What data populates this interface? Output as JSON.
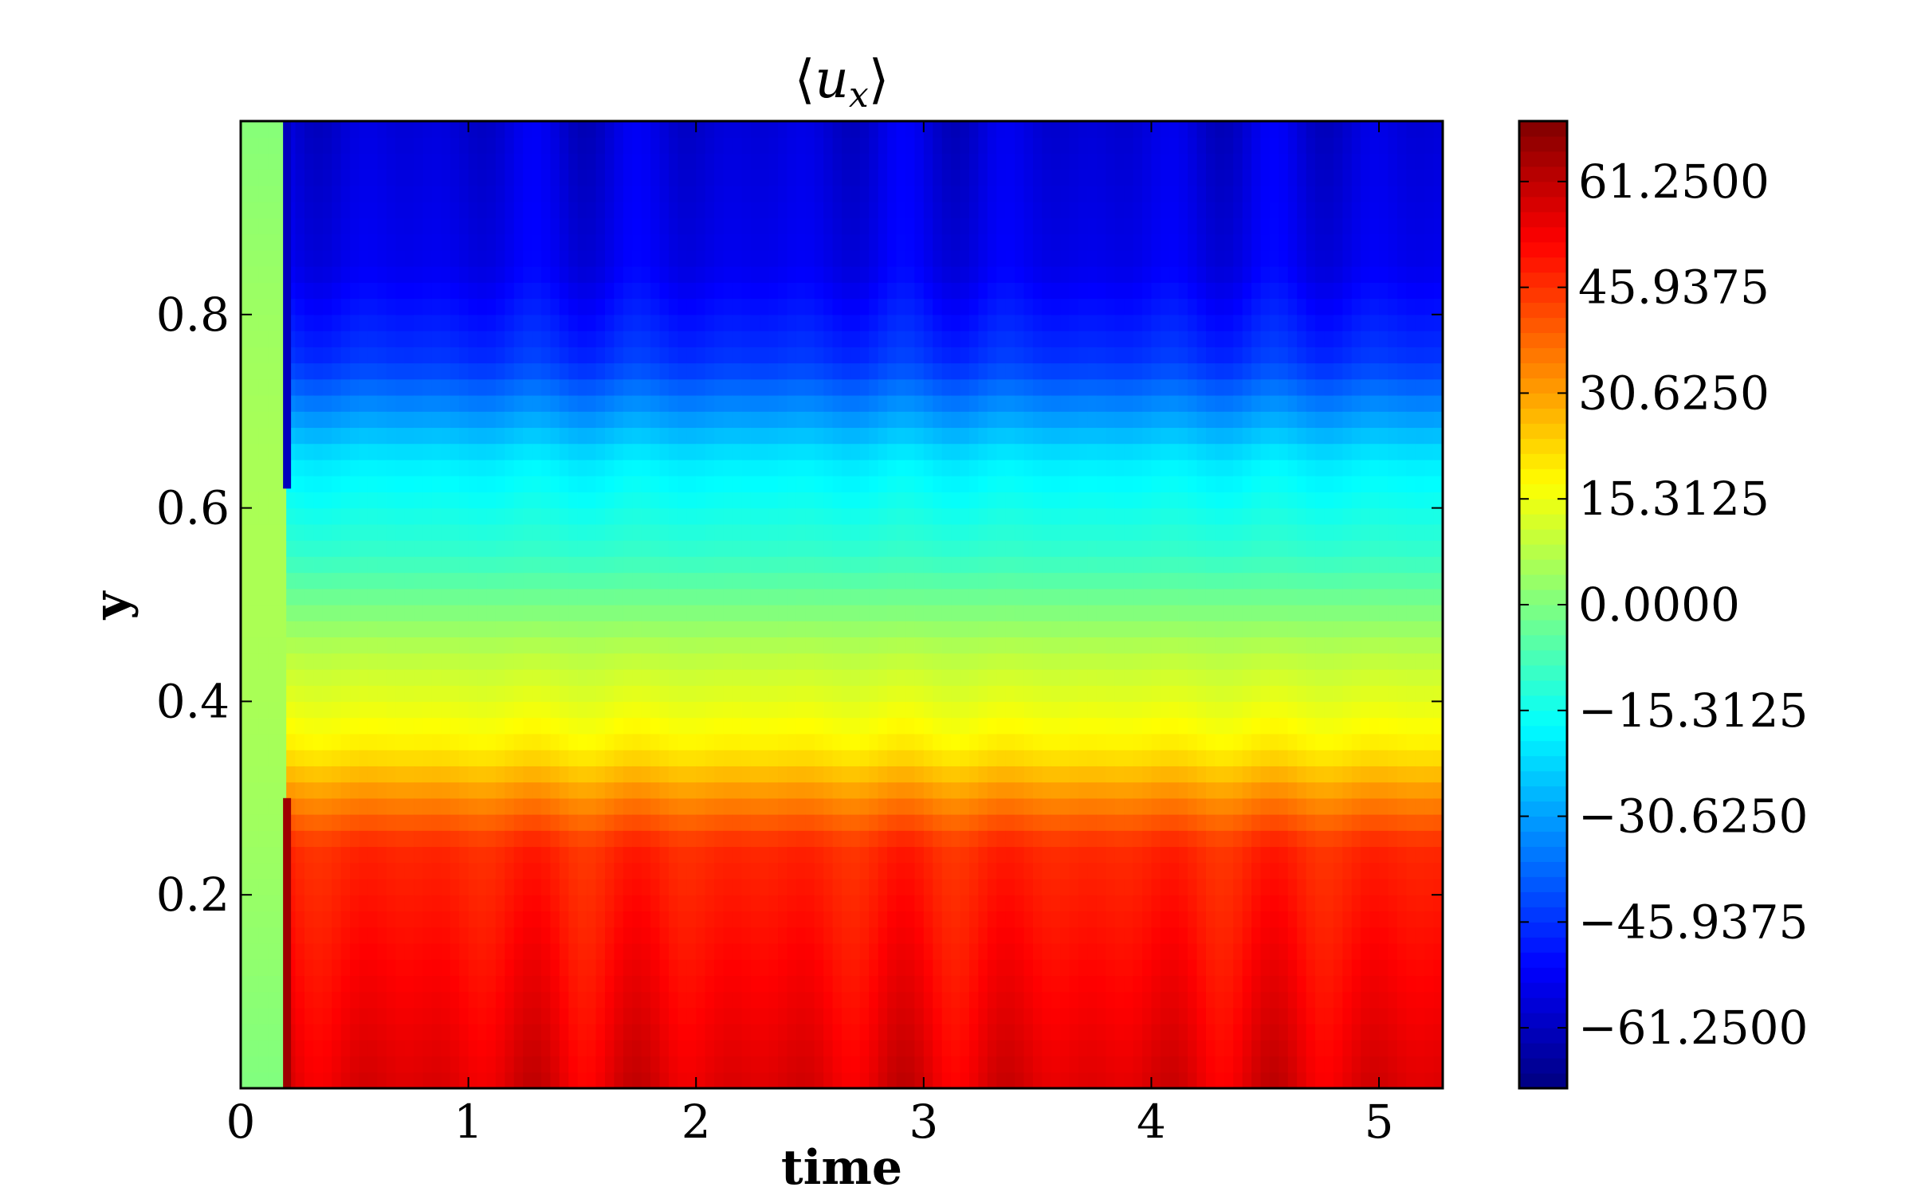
{
  "chart_data": {
    "type": "heatmap",
    "title": "⟨u_x⟩",
    "title_parts": {
      "open": "⟨",
      "var": "u",
      "sub": "x",
      "close": "⟩"
    },
    "xlabel": "time",
    "ylabel": "y",
    "xlim": [
      0,
      5.28
    ],
    "ylim": [
      0,
      1.0
    ],
    "x_ticks": [
      0,
      1,
      2,
      3,
      4,
      5
    ],
    "x_tick_labels": [
      "0",
      "1",
      "2",
      "3",
      "4",
      "5"
    ],
    "y_ticks": [
      0.2,
      0.4,
      0.6,
      0.8
    ],
    "y_tick_labels": [
      "0.2",
      "0.4",
      "0.6",
      "0.8"
    ],
    "colorbar": {
      "vmin": -70,
      "vmax": 70,
      "colormap": "jet",
      "ticks": [
        61.25,
        45.9375,
        30.625,
        15.3125,
        0.0,
        -15.3125,
        -30.625,
        -45.9375,
        -61.25
      ],
      "tick_labels": [
        "61.2500",
        "45.9375",
        "30.6250",
        "15.3125",
        "0.0000",
        "−15.3125",
        "−30.6250",
        "−45.9375",
        "−61.2500"
      ]
    },
    "field_description": {
      "initial_transient_until_time": 0.2,
      "initial_value": 0,
      "top_region": {
        "y": [
          0.7,
          1.0
        ],
        "value": -55
      },
      "mid_region": {
        "y": [
          0.45,
          0.65
        ],
        "value": -10
      },
      "low_region": {
        "y": [
          0.3,
          0.4
        ],
        "value": 20
      },
      "bottom_region": {
        "y": [
          0.0,
          0.25
        ],
        "value": 55
      }
    },
    "grid": false
  }
}
